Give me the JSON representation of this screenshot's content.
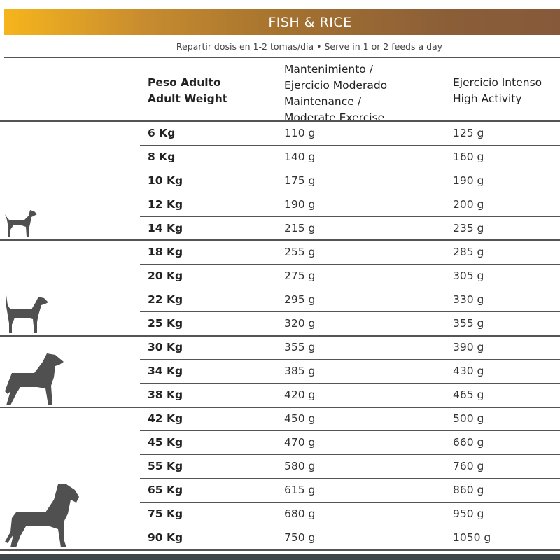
{
  "title": "FISH & RICE",
  "subtitle": "Repartir dosis en 1-2 tomas/día • Serve in 1 or 2 feeds a day",
  "headers": {
    "weight": [
      "Peso Adulto",
      "Adult Weight"
    ],
    "maintenance": [
      "Mantenimiento /",
      "Ejercicio Moderado",
      "Maintenance /",
      "Moderate Exercise"
    ],
    "high": [
      "Ejercicio Intenso",
      "High Activity"
    ]
  },
  "rows": [
    {
      "weight": "6 Kg",
      "maintenance": "110 g",
      "high": "125 g"
    },
    {
      "weight": "8 Kg",
      "maintenance": "140 g",
      "high": "160 g"
    },
    {
      "weight": "10 Kg",
      "maintenance": "175 g",
      "high": "190 g"
    },
    {
      "weight": "12 Kg",
      "maintenance": "190 g",
      "high": "200 g"
    },
    {
      "weight": "14 Kg",
      "maintenance": "215 g",
      "high": "235 g"
    },
    {
      "weight": "18 Kg",
      "maintenance": "255 g",
      "high": "285 g"
    },
    {
      "weight": "20 Kg",
      "maintenance": "275 g",
      "high": "305 g"
    },
    {
      "weight": "22 Kg",
      "maintenance": "295 g",
      "high": "330 g"
    },
    {
      "weight": "25 Kg",
      "maintenance": "320 g",
      "high": "355 g"
    },
    {
      "weight": "30 Kg",
      "maintenance": "355 g",
      "high": "390 g"
    },
    {
      "weight": "34 Kg",
      "maintenance": "385 g",
      "high": "430 g"
    },
    {
      "weight": "38 Kg",
      "maintenance": "420 g",
      "high": "465 g"
    },
    {
      "weight": "42 Kg",
      "maintenance": "450 g",
      "high": "500 g"
    },
    {
      "weight": "45 Kg",
      "maintenance": "470 g",
      "high": "660 g"
    },
    {
      "weight": "55 Kg",
      "maintenance": "580 g",
      "high": "760 g"
    },
    {
      "weight": "65 Kg",
      "maintenance": "615 g",
      "high": "860 g"
    },
    {
      "weight": "75 Kg",
      "maintenance": "680 g",
      "high": "950 g"
    },
    {
      "weight": "90 Kg",
      "maintenance": "750 g",
      "high": "1050 g"
    }
  ],
  "icons": [
    "small-dog-icon",
    "medium-dog-icon",
    "large-dog-icon",
    "giant-dog-icon"
  ]
}
